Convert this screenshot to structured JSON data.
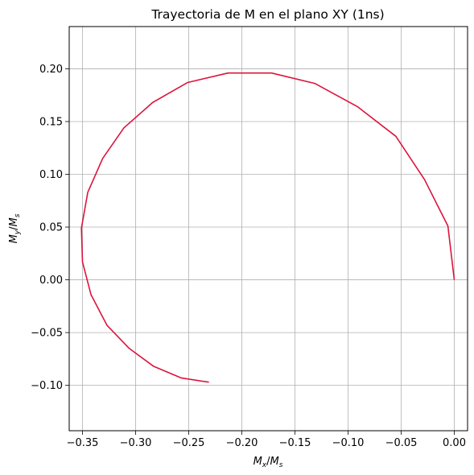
{
  "chart_data": {
    "type": "line",
    "title": "Trayectoria de M en el plano XY (1ns)",
    "xlabel": {
      "base": "M",
      "sub1": "x",
      "slash": "/",
      "base2": "M",
      "sub2": "s"
    },
    "ylabel": {
      "base": "M",
      "sub1": "y",
      "slash": "/",
      "base2": "M",
      "sub2": "s"
    },
    "xlim": [
      -0.3625,
      0.0125
    ],
    "ylim": [
      -0.143,
      0.24
    ],
    "grid": true,
    "line_color": "#dc143c",
    "x_ticks": [
      {
        "value": -0.35,
        "label": "−0.35"
      },
      {
        "value": -0.3,
        "label": "−0.30"
      },
      {
        "value": -0.25,
        "label": "−0.25"
      },
      {
        "value": -0.2,
        "label": "−0.20"
      },
      {
        "value": -0.15,
        "label": "−0.15"
      },
      {
        "value": -0.1,
        "label": "−0.10"
      },
      {
        "value": -0.05,
        "label": "−0.05"
      },
      {
        "value": 0.0,
        "label": "0.00"
      }
    ],
    "y_ticks": [
      {
        "value": -0.1,
        "label": "−0.10"
      },
      {
        "value": -0.05,
        "label": "−0.05"
      },
      {
        "value": 0.0,
        "label": "0.00"
      },
      {
        "value": 0.05,
        "label": "0.05"
      },
      {
        "value": 0.1,
        "label": "0.10"
      },
      {
        "value": 0.15,
        "label": "0.15"
      },
      {
        "value": 0.2,
        "label": "0.20"
      }
    ],
    "series": [
      {
        "x": [
          0.0,
          -0.006,
          -0.028,
          -0.055,
          -0.091,
          -0.131,
          -0.172,
          -0.213,
          -0.251,
          -0.284,
          -0.311,
          -0.331,
          -0.345,
          -0.351,
          -0.35,
          -0.342,
          -0.327,
          -0.306,
          -0.283,
          -0.257,
          -0.231
        ],
        "y": [
          0.0,
          0.051,
          0.095,
          0.136,
          0.164,
          0.186,
          0.196,
          0.196,
          0.187,
          0.168,
          0.144,
          0.115,
          0.083,
          0.049,
          0.017,
          -0.014,
          -0.043,
          -0.065,
          -0.082,
          -0.093,
          -0.097
        ]
      }
    ]
  }
}
